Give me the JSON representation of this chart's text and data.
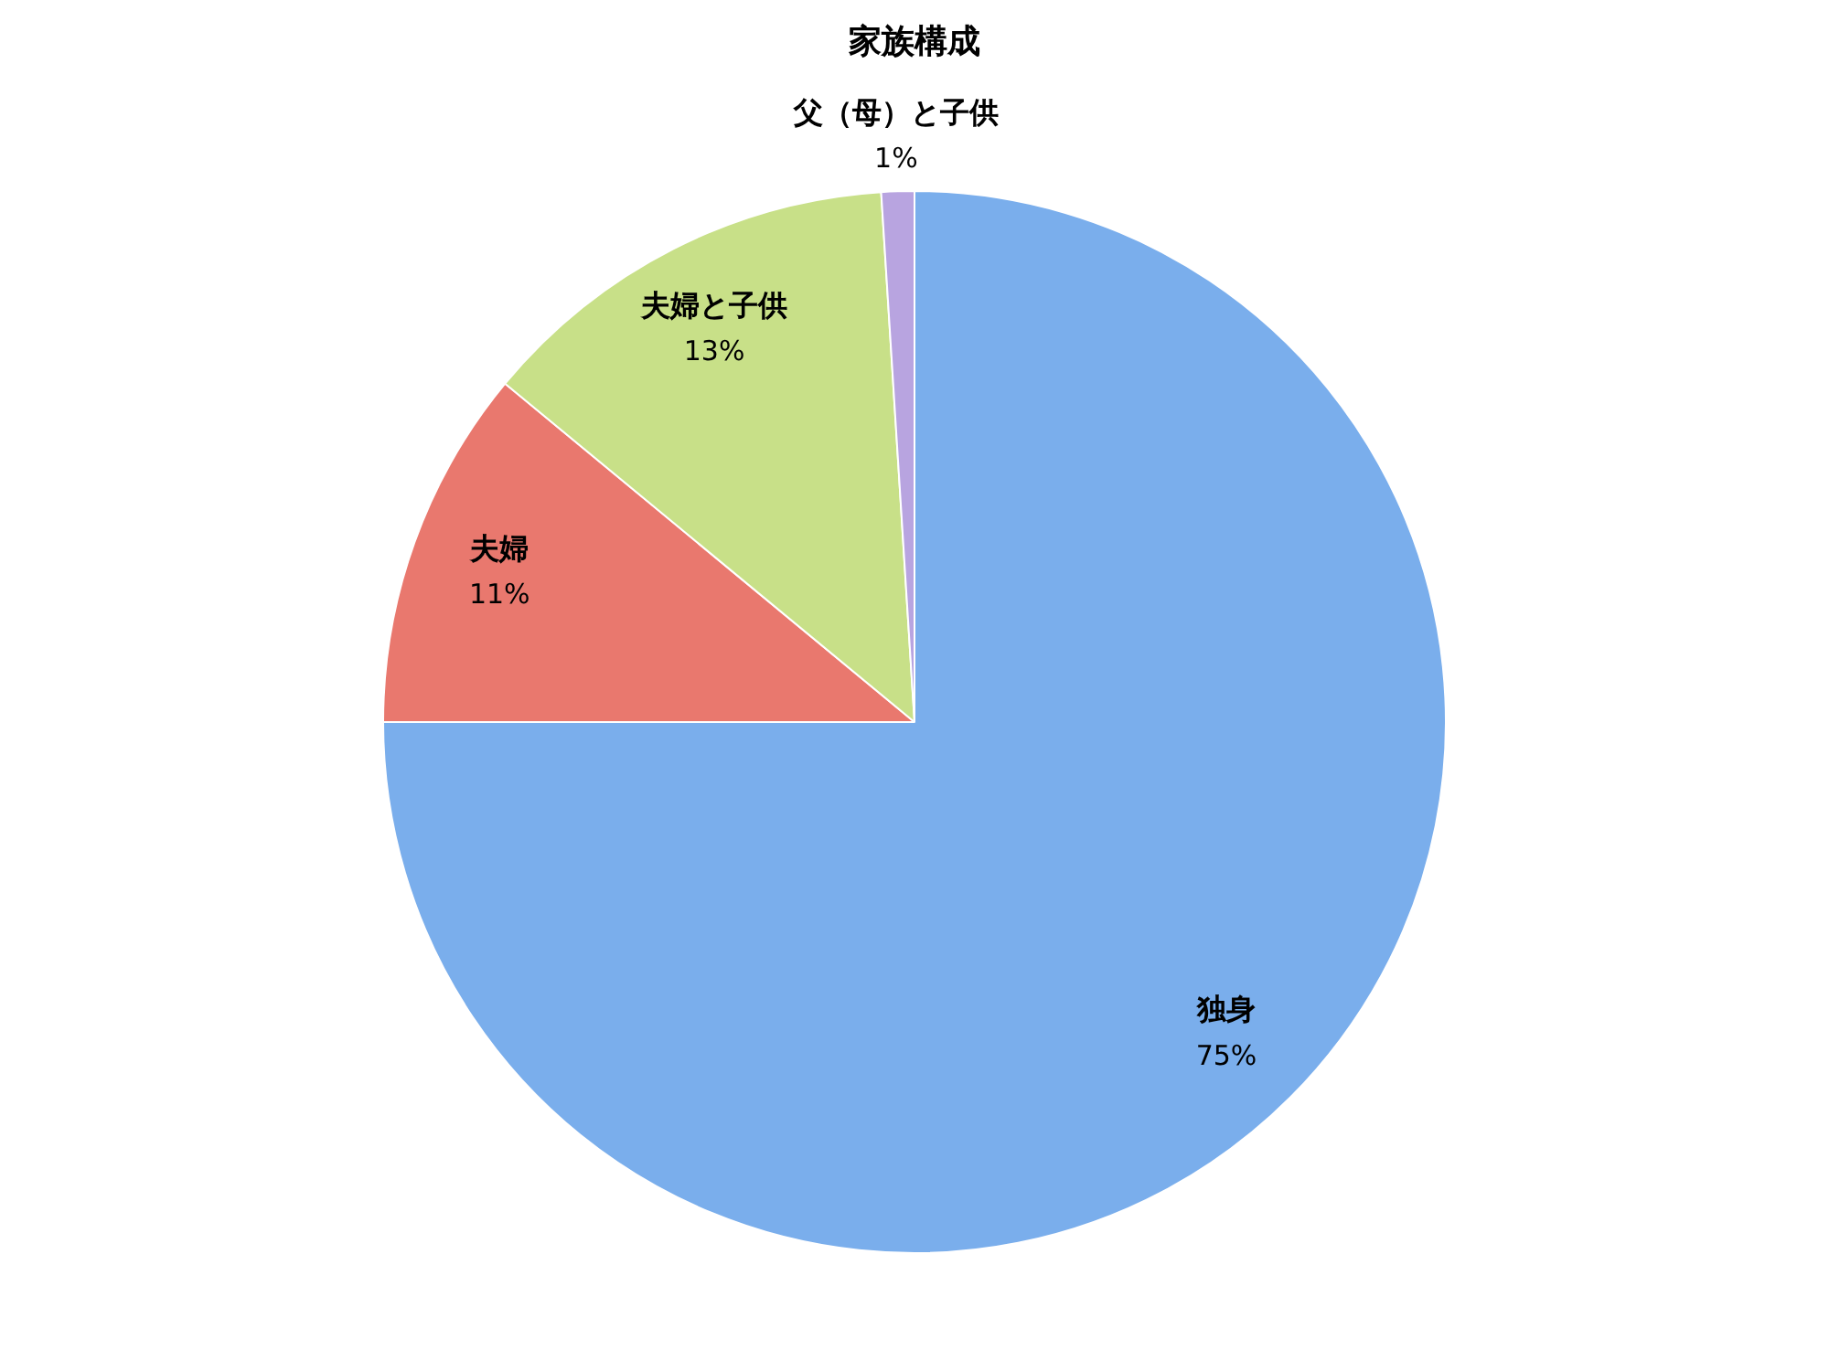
{
  "chart_data": {
    "type": "pie",
    "title": "家族構成",
    "categories": [
      "独身",
      "夫婦",
      "夫婦と子供",
      "父（母）と子供"
    ],
    "values": [
      75,
      11,
      13,
      1
    ],
    "value_labels": [
      "75%",
      "11%",
      "13%",
      "1%"
    ],
    "colors": [
      "#7aaeec",
      "#e9786e",
      "#c8e088",
      "#b8a4e0"
    ],
    "legend": false
  }
}
